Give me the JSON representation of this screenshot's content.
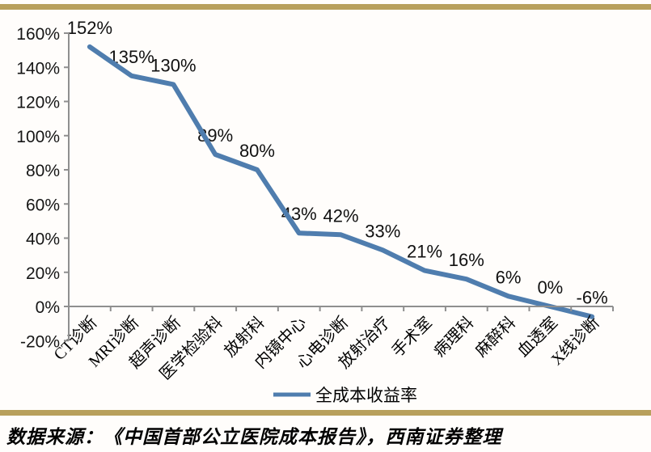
{
  "chart_data": {
    "type": "line",
    "title": "",
    "xlabel": "",
    "ylabel": "",
    "categories": [
      "CT诊断",
      "MRI诊断",
      "超声诊断",
      "医学检验科",
      "放射科",
      "内镜中心",
      "心电诊断",
      "放射治疗",
      "手术室",
      "病理科",
      "麻醉科",
      "血透室",
      "X线诊断"
    ],
    "values": [
      152,
      135,
      130,
      89,
      80,
      43,
      42,
      33,
      21,
      16,
      6,
      0,
      -6
    ],
    "data_labels": [
      "152%",
      "135%",
      "130%",
      "89%",
      "80%",
      "43%",
      "42%",
      "33%",
      "21%",
      "16%",
      "6%",
      "0%",
      "-6%"
    ],
    "y_ticks": [
      160,
      140,
      120,
      100,
      80,
      60,
      40,
      20,
      0,
      -20
    ],
    "y_tick_labels": [
      "160%",
      "140%",
      "120%",
      "100%",
      "80%",
      "60%",
      "40%",
      "20%",
      "0%",
      "-20%"
    ],
    "ylim": [
      -20,
      160
    ],
    "grid": false,
    "legend": {
      "position": "bottom",
      "label": "全成本收益率"
    },
    "colors": {
      "line": "#4f7dae",
      "axis": "#8f8f8f",
      "rule": "#b8a05c",
      "text": "#111111",
      "background": "#fffdfb"
    }
  },
  "footer": {
    "source": "数据来源：《中国首部公立医院成本报告》，西南证券整理"
  }
}
